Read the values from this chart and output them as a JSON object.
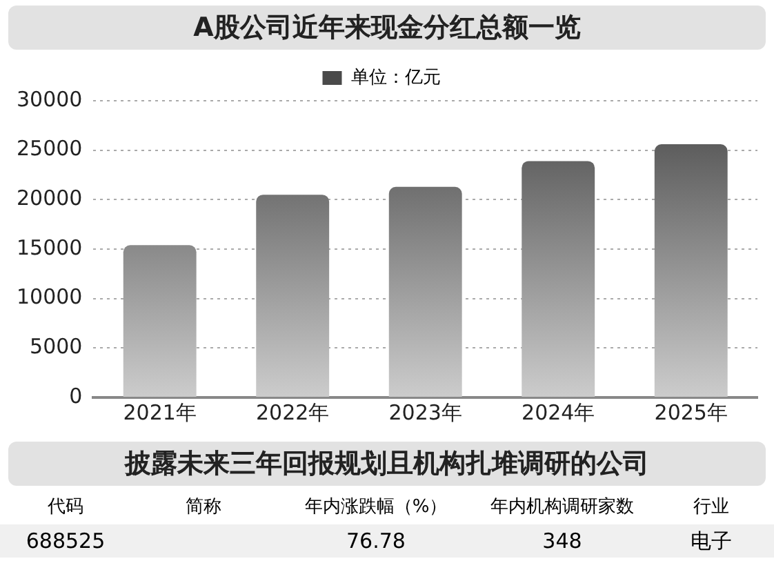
{
  "chart_data": {
    "type": "bar",
    "title": "A股公司近年来现金分红总额一览",
    "categories": [
      "2021年",
      "2022年",
      "2023年",
      "2024年",
      "2025年"
    ],
    "series": [
      {
        "name": "单位：亿元",
        "color": "#4a4a4a",
        "values": [
          15400,
          20500,
          21300,
          23900,
          25600
        ]
      }
    ],
    "ylim": [
      0,
      30000
    ],
    "yticks": [
      0,
      5000,
      10000,
      15000,
      20000,
      25000,
      30000
    ],
    "grid": "y",
    "legend": "top",
    "annotations": [
      "披露未来三年回报规划且机构扎堆调研的公司",
      "代码",
      "简称",
      "年内涨跌幅（%）",
      "年内机构调研家数",
      "行业",
      "688525",
      "76.78",
      "348",
      "电子"
    ]
  }
}
